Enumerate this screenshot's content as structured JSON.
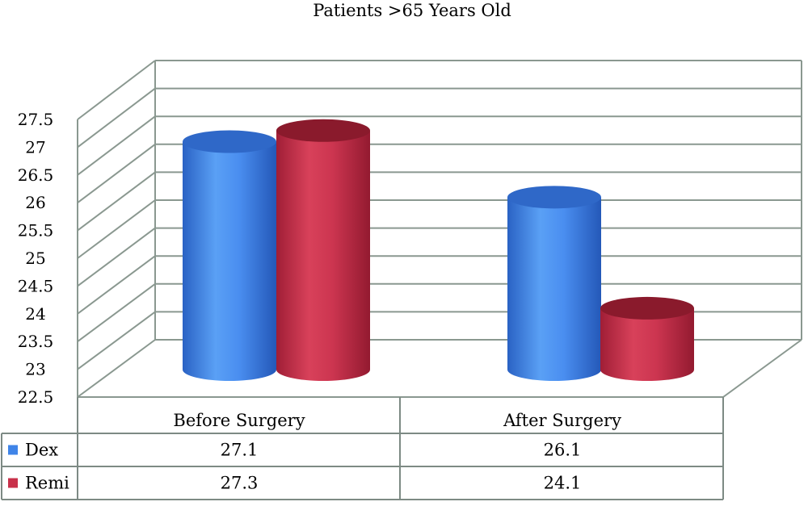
{
  "chart_data": {
    "type": "bar",
    "title": "Patients >65 Years Old",
    "categories": [
      "Before Surgery",
      "After Surgery"
    ],
    "series": [
      {
        "name": "Dex",
        "values": [
          27.1,
          26.1
        ],
        "color": "#3f84e8"
      },
      {
        "name": "Remi",
        "values": [
          27.3,
          24.1
        ],
        "color": "#c8304a"
      }
    ],
    "yticks": [
      "22.5",
      "23",
      "23.5",
      "24",
      "24.5",
      "25",
      "25.5",
      "26",
      "26.5",
      "27",
      "27.5"
    ],
    "ylim": [
      22.5,
      27.5
    ],
    "grid": true,
    "legend": "data-table",
    "table": [
      {
        "series": "Dex",
        "values": [
          "27.1",
          "26.1"
        ]
      },
      {
        "series": "Remi",
        "values": [
          "27.3",
          "24.1"
        ]
      }
    ]
  }
}
